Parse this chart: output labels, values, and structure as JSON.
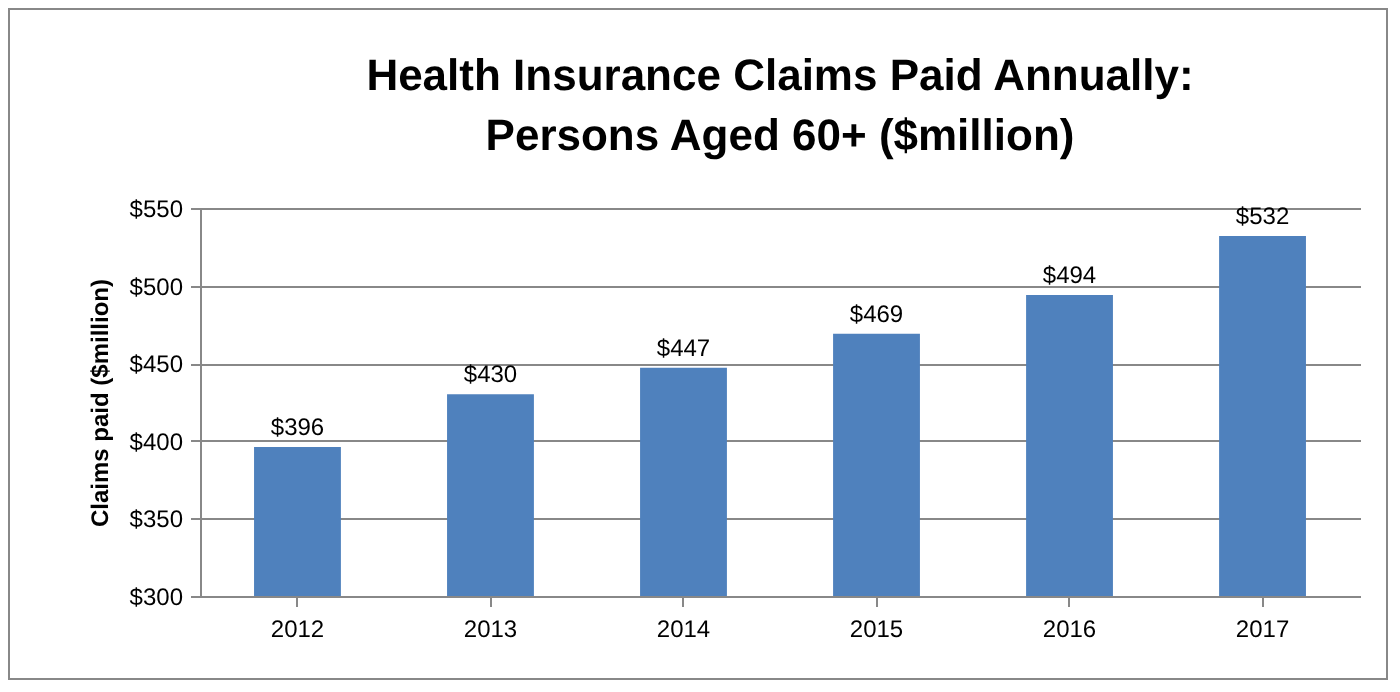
{
  "chart_data": {
    "type": "bar",
    "title": "Health Insurance Claims Paid Annually:\nPersons Aged 60+ ($million)",
    "ylabel": "Claims paid ($million)",
    "categories": [
      "2012",
      "2013",
      "2014",
      "2015",
      "2016",
      "2017"
    ],
    "values": [
      396,
      430,
      447,
      469,
      494,
      532
    ],
    "color": "#4f81bd",
    "value_labels": [
      "$396",
      "$430",
      "$447",
      "$469",
      "$494",
      "$532"
    ],
    "ylim": [
      300,
      550
    ],
    "yticks": [
      {
        "value": 300,
        "label": "$300"
      },
      {
        "value": 350,
        "label": "$350"
      },
      {
        "value": 400,
        "label": "$400"
      },
      {
        "value": 450,
        "label": "$450"
      },
      {
        "value": 500,
        "label": "$500"
      },
      {
        "value": 550,
        "label": "$550"
      }
    ],
    "grid": "y"
  }
}
